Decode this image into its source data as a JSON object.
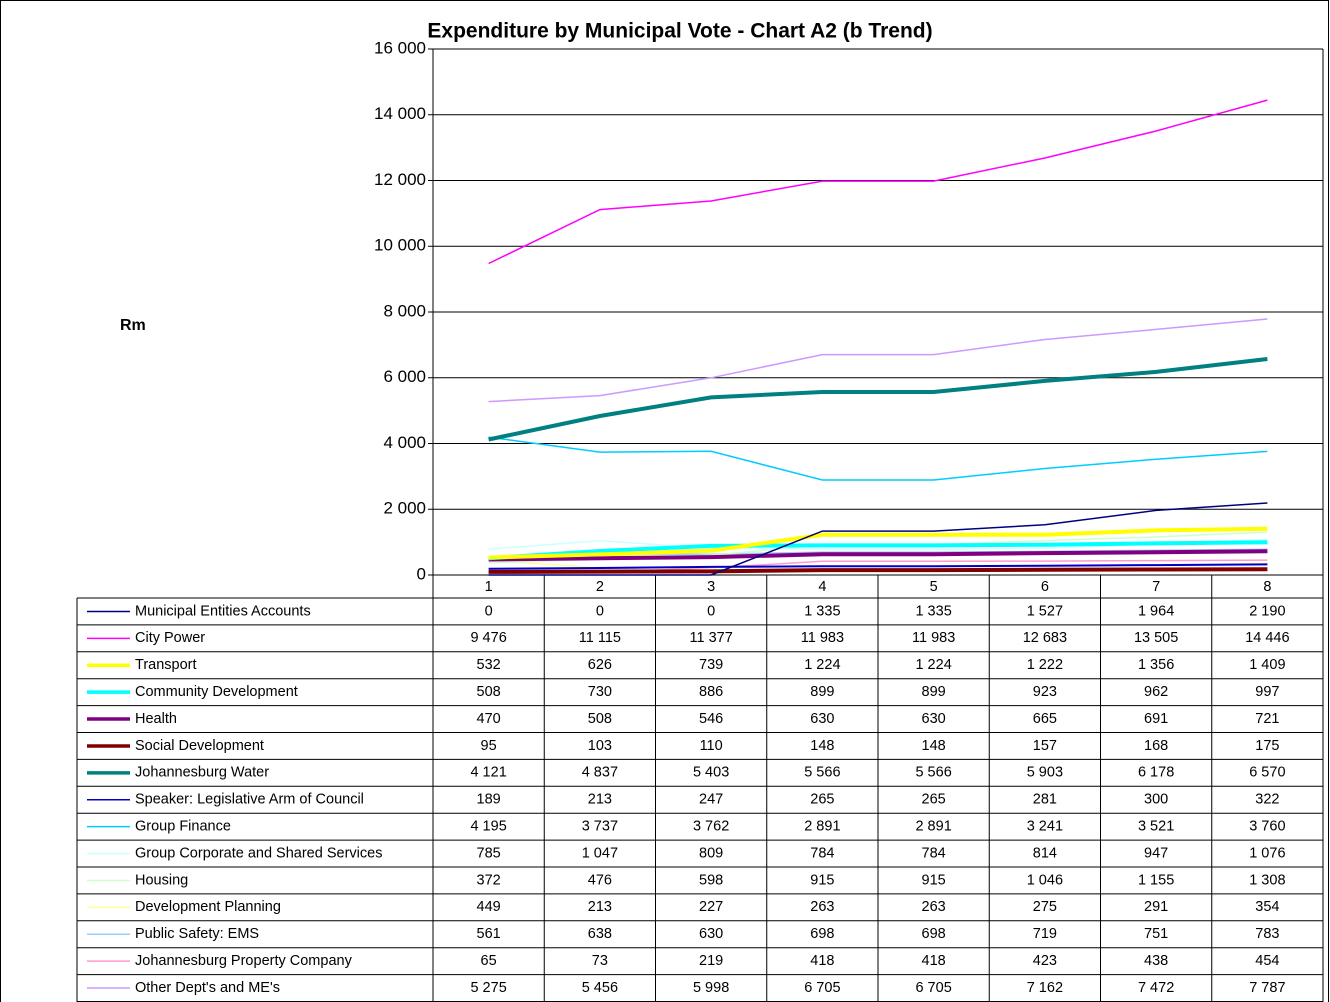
{
  "chart_data": {
    "type": "line",
    "title": "Expenditure by Municipal Vote - Chart A2 (b Trend)",
    "y_label": "Rm",
    "categories": [
      "1",
      "2",
      "3",
      "4",
      "5",
      "6",
      "7",
      "8"
    ],
    "ylim": [
      0,
      16000
    ],
    "yticks": [
      0,
      {
        "value": 2000,
        "label": "2 000"
      },
      {
        "value": 4000,
        "label": "4 000"
      },
      {
        "value": 6000,
        "label": "6 000"
      },
      {
        "value": 8000,
        "label": "8 000"
      },
      {
        "value": 10000,
        "label": "10 000"
      },
      {
        "value": 12000,
        "label": "12 000"
      },
      {
        "value": 14000,
        "label": "14 000"
      },
      {
        "value": 16000,
        "label": "16 000"
      }
    ],
    "grid": true,
    "series": [
      {
        "name": "Municipal Entities Accounts",
        "color": "#000080",
        "line_width": 1.5,
        "values": [
          0,
          0,
          0,
          1335,
          1335,
          1527,
          1964,
          2190
        ],
        "value_labels": [
          "0",
          "0",
          "0",
          "1 335",
          "1 335",
          "1 527",
          "1 964",
          "2 190"
        ]
      },
      {
        "name": "City Power",
        "color": "#ff00ff",
        "line_width": 1.5,
        "values": [
          9476,
          11115,
          11377,
          11983,
          11983,
          12683,
          13505,
          14446
        ],
        "value_labels": [
          "9 476",
          "11 115",
          "11 377",
          "11 983",
          "11 983",
          "12 683",
          "13 505",
          "14 446"
        ]
      },
      {
        "name": "Transport",
        "color": "#ffff00",
        "line_width": 4,
        "values": [
          532,
          626,
          739,
          1224,
          1224,
          1222,
          1356,
          1409
        ],
        "value_labels": [
          "532",
          "626",
          "739",
          "1 224",
          "1 224",
          "1 222",
          "1 356",
          "1 409"
        ]
      },
      {
        "name": "Community Development",
        "color": "#00ffff",
        "line_width": 4,
        "values": [
          508,
          730,
          886,
          899,
          899,
          923,
          962,
          997
        ],
        "value_labels": [
          "508",
          "730",
          "886",
          "899",
          "899",
          "923",
          "962",
          "997"
        ]
      },
      {
        "name": "Health",
        "color": "#800080",
        "line_width": 4,
        "values": [
          470,
          508,
          546,
          630,
          630,
          665,
          691,
          721
        ],
        "value_labels": [
          "470",
          "508",
          "546",
          "630",
          "630",
          "665",
          "691",
          "721"
        ]
      },
      {
        "name": "Social Development",
        "color": "#800000",
        "line_width": 4,
        "values": [
          95,
          103,
          110,
          148,
          148,
          157,
          168,
          175
        ],
        "value_labels": [
          "95",
          "103",
          "110",
          "148",
          "148",
          "157",
          "168",
          "175"
        ]
      },
      {
        "name": "Johannesburg Water",
        "color": "#008080",
        "line_width": 4,
        "values": [
          4121,
          4837,
          5403,
          5566,
          5566,
          5903,
          6178,
          6570
        ],
        "value_labels": [
          "4 121",
          "4 837",
          "5 403",
          "5 566",
          "5 566",
          "5 903",
          "6 178",
          "6 570"
        ]
      },
      {
        "name": "Speaker: Legislative Arm of Council",
        "color": "#0000cc",
        "line_width": 2,
        "values": [
          189,
          213,
          247,
          265,
          265,
          281,
          300,
          322
        ],
        "value_labels": [
          "189",
          "213",
          "247",
          "265",
          "265",
          "281",
          "300",
          "322"
        ]
      },
      {
        "name": "Group Finance",
        "color": "#00ccff",
        "line_width": 1.5,
        "values": [
          4195,
          3737,
          3762,
          2891,
          2891,
          3241,
          3521,
          3760
        ],
        "value_labels": [
          "4 195",
          "3 737",
          "3 762",
          "2 891",
          "2 891",
          "3 241",
          "3 521",
          "3 760"
        ]
      },
      {
        "name": "Group Corporate and Shared Services",
        "color": "#ccffff",
        "line_width": 1.5,
        "values": [
          785,
          1047,
          809,
          784,
          784,
          814,
          947,
          1076
        ],
        "value_labels": [
          "785",
          "1 047",
          "809",
          "784",
          "784",
          "814",
          "947",
          "1 076"
        ]
      },
      {
        "name": "Housing",
        "color": "#ccffcc",
        "line_width": 1.5,
        "values": [
          372,
          476,
          598,
          915,
          915,
          1046,
          1155,
          1308
        ],
        "value_labels": [
          "372",
          "476",
          "598",
          "915",
          "915",
          "1 046",
          "1 155",
          "1 308"
        ]
      },
      {
        "name": "Development Planning",
        "color": "#ffff99",
        "line_width": 1.5,
        "values": [
          449,
          213,
          227,
          263,
          263,
          275,
          291,
          354
        ],
        "value_labels": [
          "449",
          "213",
          "227",
          "263",
          "263",
          "275",
          "291",
          "354"
        ]
      },
      {
        "name": "Public Safety: EMS",
        "color": "#99ccff",
        "line_width": 1.5,
        "values": [
          561,
          638,
          630,
          698,
          698,
          719,
          751,
          783
        ],
        "value_labels": [
          "561",
          "638",
          "630",
          "698",
          "698",
          "719",
          "751",
          "783"
        ]
      },
      {
        "name": "Johannesburg Property Company",
        "color": "#ff99cc",
        "line_width": 1.5,
        "values": [
          65,
          73,
          219,
          418,
          418,
          423,
          438,
          454
        ],
        "value_labels": [
          "65",
          "73",
          "219",
          "418",
          "418",
          "423",
          "438",
          "454"
        ]
      },
      {
        "name": "Other Dept's and ME's",
        "color": "#cc99ff",
        "line_width": 1.5,
        "values": [
          5275,
          5456,
          5998,
          6705,
          6705,
          7162,
          7472,
          7787
        ],
        "value_labels": [
          "5 275",
          "5 456",
          "5 998",
          "6 705",
          "6 705",
          "7 162",
          "7 472",
          "7 787"
        ]
      }
    ]
  }
}
